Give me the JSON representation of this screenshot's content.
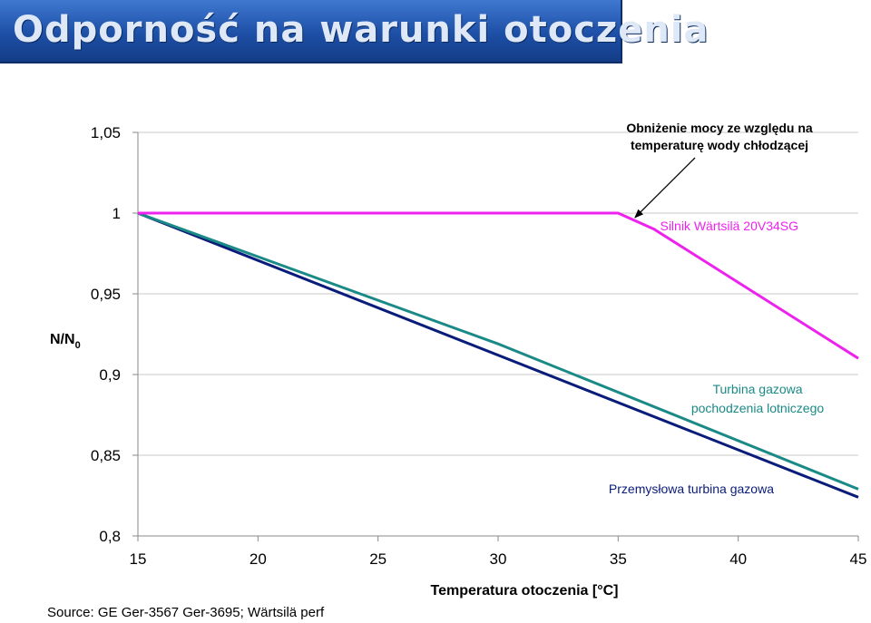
{
  "header": {
    "title": "Odporność na warunki otoczenia"
  },
  "footer": {
    "source": "Source: GE Ger-3567 Ger-3695; Wärtsilä perf"
  },
  "chart_data": {
    "type": "line",
    "xlabel": "Temperatura otoczenia [°C]",
    "ylabel": "N/N",
    "ylabel_subscript": "0",
    "xlim": [
      15,
      45
    ],
    "ylim": [
      0.8,
      1.05
    ],
    "x_ticks": [
      15,
      20,
      25,
      30,
      35,
      40,
      45
    ],
    "x_tick_labels": [
      "15",
      "20",
      "25",
      "30",
      "35",
      "40",
      "45"
    ],
    "y_ticks": [
      0.8,
      0.85,
      0.9,
      0.95,
      1.0,
      1.05
    ],
    "y_tick_labels": [
      "0,8",
      "0,85",
      "0,9",
      "0,95",
      "1",
      "1,05"
    ],
    "grid": "horizontal",
    "series": [
      {
        "name": "Silnik Wärtsilä 20V34SG",
        "color": "#ee22ee",
        "x": [
          15,
          35,
          36.5,
          45
        ],
        "y": [
          1.0,
          1.0,
          0.99,
          0.91
        ]
      },
      {
        "name": "Turbina gazowa pochodzenia lotniczego",
        "color": "#1a8a87",
        "x": [
          15,
          30,
          45
        ],
        "y": [
          1.0,
          0.919,
          0.829
        ]
      },
      {
        "name": "Przemysłowa turbina gazowa",
        "color": "#0a1c7a",
        "x": [
          15,
          45
        ],
        "y": [
          1.0,
          0.824
        ]
      }
    ],
    "annotation": {
      "lines": [
        "Obniżenie mocy ze względu na",
        "temperaturę wody chłodzącej"
      ],
      "arrow_to": {
        "x": 35.7,
        "y": 0.995
      }
    }
  }
}
